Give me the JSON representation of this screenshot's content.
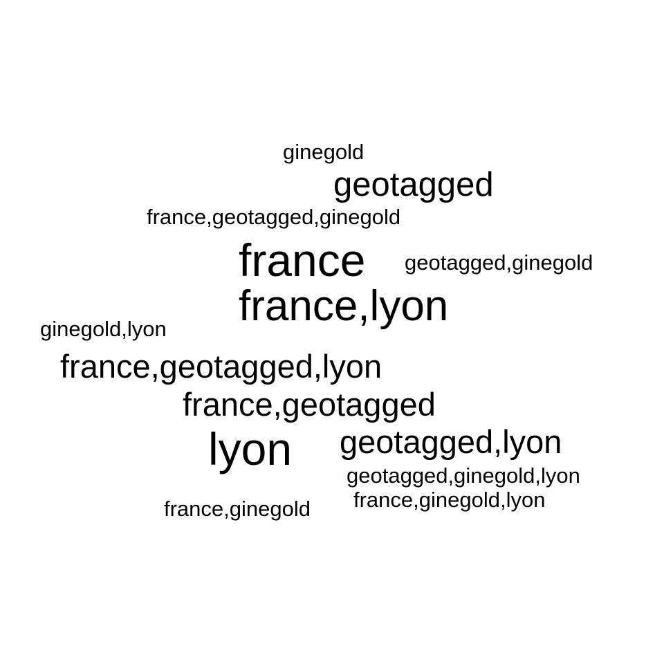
{
  "text_color": "#000000",
  "background_color": "#ffffff",
  "words": [
    {
      "text": "ginegold"
    },
    {
      "text": "geotagged"
    },
    {
      "text": "france,geotagged,ginegold"
    },
    {
      "text": "france"
    },
    {
      "text": "geotagged,ginegold"
    },
    {
      "text": "france,lyon"
    },
    {
      "text": "ginegold,lyon"
    },
    {
      "text": "france,geotagged,lyon"
    },
    {
      "text": "france,geotagged"
    },
    {
      "text": "lyon"
    },
    {
      "text": "geotagged,lyon"
    },
    {
      "text": "geotagged,ginegold,lyon"
    },
    {
      "text": "france,ginegold,lyon"
    },
    {
      "text": "france,ginegold"
    }
  ]
}
